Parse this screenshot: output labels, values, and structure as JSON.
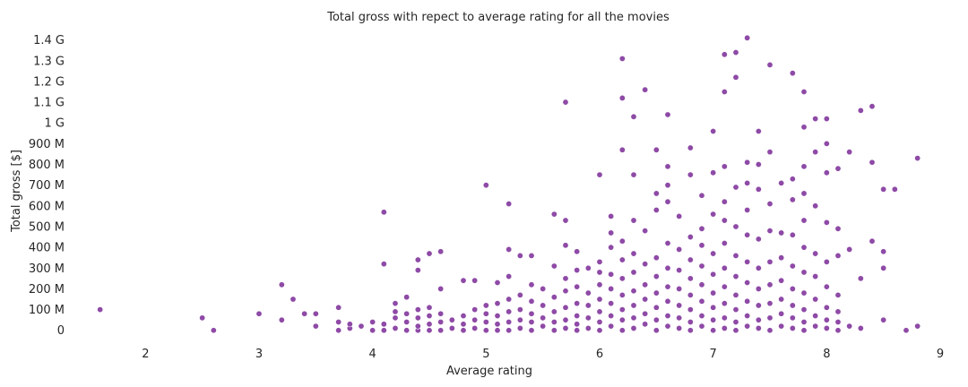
{
  "chart_data": {
    "type": "scatter",
    "title": "Total gross with repect to average rating for all the movies",
    "xlabel": "Average rating",
    "ylabel": "Total gross [$]",
    "xlim": [
      1.35,
      9.0
    ],
    "ylim": [
      -0.04,
      1.42
    ],
    "x_ticks": [
      2,
      3,
      4,
      5,
      6,
      7,
      8,
      9
    ],
    "x_tick_labels": [
      "2",
      "3",
      "4",
      "5",
      "6",
      "7",
      "8",
      "9"
    ],
    "y_ticks": [
      0,
      0.1,
      0.2,
      0.3,
      0.4,
      0.5,
      0.6,
      0.7,
      0.8,
      0.9,
      1.0,
      1.1,
      1.2,
      1.3,
      1.4
    ],
    "y_tick_labels": [
      "0",
      "100 M",
      "200 M",
      "300 M",
      "400 M",
      "500 M",
      "600 M",
      "700 M",
      "800 M",
      "900 M",
      "1 G",
      "1.1 G",
      "1.2 G",
      "1.3 G",
      "1.4 G"
    ],
    "y_unit": "G$",
    "grid": false,
    "marker_color": "#8e4aa6",
    "points": [
      [
        1.6,
        0.1
      ],
      [
        2.5,
        0.06
      ],
      [
        2.6,
        0.0
      ],
      [
        3.0,
        0.08
      ],
      [
        3.2,
        0.05
      ],
      [
        3.2,
        0.22
      ],
      [
        3.3,
        0.15
      ],
      [
        3.4,
        0.08
      ],
      [
        3.5,
        0.02
      ],
      [
        3.5,
        0.08
      ],
      [
        3.7,
        0.0
      ],
      [
        3.7,
        0.04
      ],
      [
        3.7,
        0.11
      ],
      [
        3.8,
        0.01
      ],
      [
        3.8,
        0.03
      ],
      [
        3.9,
        0.02
      ],
      [
        4.0,
        0.0
      ],
      [
        4.0,
        0.04
      ],
      [
        4.1,
        0.0
      ],
      [
        4.1,
        0.03
      ],
      [
        4.1,
        0.32
      ],
      [
        4.1,
        0.57
      ],
      [
        4.2,
        0.01
      ],
      [
        4.2,
        0.06
      ],
      [
        4.2,
        0.09
      ],
      [
        4.2,
        0.13
      ],
      [
        4.3,
        0.0
      ],
      [
        4.3,
        0.04
      ],
      [
        4.3,
        0.08
      ],
      [
        4.3,
        0.16
      ],
      [
        4.4,
        0.0
      ],
      [
        4.4,
        0.02
      ],
      [
        4.4,
        0.06
      ],
      [
        4.4,
        0.1
      ],
      [
        4.4,
        0.29
      ],
      [
        4.4,
        0.34
      ],
      [
        4.5,
        0.0
      ],
      [
        4.5,
        0.03
      ],
      [
        4.5,
        0.07
      ],
      [
        4.5,
        0.11
      ],
      [
        4.5,
        0.37
      ],
      [
        4.6,
        0.0
      ],
      [
        4.6,
        0.04
      ],
      [
        4.6,
        0.08
      ],
      [
        4.6,
        0.2
      ],
      [
        4.6,
        0.38
      ],
      [
        4.7,
        0.01
      ],
      [
        4.7,
        0.05
      ],
      [
        4.8,
        0.0
      ],
      [
        4.8,
        0.03
      ],
      [
        4.8,
        0.07
      ],
      [
        4.8,
        0.24
      ],
      [
        4.9,
        0.01
      ],
      [
        4.9,
        0.05
      ],
      [
        4.9,
        0.1
      ],
      [
        4.9,
        0.24
      ],
      [
        5.0,
        0.0
      ],
      [
        5.0,
        0.04
      ],
      [
        5.0,
        0.08
      ],
      [
        5.0,
        0.12
      ],
      [
        5.0,
        0.7
      ],
      [
        5.1,
        0.0
      ],
      [
        5.1,
        0.03
      ],
      [
        5.1,
        0.07
      ],
      [
        5.1,
        0.13
      ],
      [
        5.1,
        0.23
      ],
      [
        5.2,
        0.0
      ],
      [
        5.2,
        0.04
      ],
      [
        5.2,
        0.09
      ],
      [
        5.2,
        0.15
      ],
      [
        5.2,
        0.26
      ],
      [
        5.2,
        0.39
      ],
      [
        5.2,
        0.61
      ],
      [
        5.3,
        0.01
      ],
      [
        5.3,
        0.05
      ],
      [
        5.3,
        0.1
      ],
      [
        5.3,
        0.17
      ],
      [
        5.3,
        0.36
      ],
      [
        5.4,
        0.0
      ],
      [
        5.4,
        0.04
      ],
      [
        5.4,
        0.08
      ],
      [
        5.4,
        0.14
      ],
      [
        5.4,
        0.22
      ],
      [
        5.4,
        0.36
      ],
      [
        5.5,
        0.02
      ],
      [
        5.5,
        0.06
      ],
      [
        5.5,
        0.12
      ],
      [
        5.5,
        0.2
      ],
      [
        5.6,
        0.0
      ],
      [
        5.6,
        0.04
      ],
      [
        5.6,
        0.09
      ],
      [
        5.6,
        0.16
      ],
      [
        5.6,
        0.31
      ],
      [
        5.6,
        0.56
      ],
      [
        5.7,
        0.01
      ],
      [
        5.7,
        0.05
      ],
      [
        5.7,
        0.11
      ],
      [
        5.7,
        0.19
      ],
      [
        5.7,
        0.25
      ],
      [
        5.7,
        0.41
      ],
      [
        5.7,
        0.53
      ],
      [
        5.7,
        1.1
      ],
      [
        5.8,
        0.0
      ],
      [
        5.8,
        0.03
      ],
      [
        5.8,
        0.07
      ],
      [
        5.8,
        0.13
      ],
      [
        5.8,
        0.21
      ],
      [
        5.8,
        0.29
      ],
      [
        5.8,
        0.38
      ],
      [
        5.9,
        0.01
      ],
      [
        5.9,
        0.06
      ],
      [
        5.9,
        0.12
      ],
      [
        5.9,
        0.18
      ],
      [
        5.9,
        0.3
      ],
      [
        6.0,
        0.0
      ],
      [
        6.0,
        0.04
      ],
      [
        6.0,
        0.09
      ],
      [
        6.0,
        0.15
      ],
      [
        6.0,
        0.22
      ],
      [
        6.0,
        0.28
      ],
      [
        6.0,
        0.33
      ],
      [
        6.0,
        0.75
      ],
      [
        6.1,
        0.02
      ],
      [
        6.1,
        0.07
      ],
      [
        6.1,
        0.13
      ],
      [
        6.1,
        0.2
      ],
      [
        6.1,
        0.27
      ],
      [
        6.1,
        0.4
      ],
      [
        6.1,
        0.47
      ],
      [
        6.1,
        0.55
      ],
      [
        6.2,
        0.0
      ],
      [
        6.2,
        0.05
      ],
      [
        6.2,
        0.1
      ],
      [
        6.2,
        0.17
      ],
      [
        6.2,
        0.25
      ],
      [
        6.2,
        0.34
      ],
      [
        6.2,
        0.43
      ],
      [
        6.2,
        0.87
      ],
      [
        6.2,
        1.12
      ],
      [
        6.2,
        1.31
      ],
      [
        6.3,
        0.01
      ],
      [
        6.3,
        0.06
      ],
      [
        6.3,
        0.12
      ],
      [
        6.3,
        0.19
      ],
      [
        6.3,
        0.28
      ],
      [
        6.3,
        0.37
      ],
      [
        6.3,
        0.53
      ],
      [
        6.3,
        0.75
      ],
      [
        6.3,
        1.03
      ],
      [
        6.4,
        0.03
      ],
      [
        6.4,
        0.08
      ],
      [
        6.4,
        0.15
      ],
      [
        6.4,
        0.22
      ],
      [
        6.4,
        0.32
      ],
      [
        6.4,
        0.48
      ],
      [
        6.4,
        1.16
      ],
      [
        6.5,
        0.0
      ],
      [
        6.5,
        0.05
      ],
      [
        6.5,
        0.11
      ],
      [
        6.5,
        0.18
      ],
      [
        6.5,
        0.26
      ],
      [
        6.5,
        0.35
      ],
      [
        6.5,
        0.58
      ],
      [
        6.5,
        0.66
      ],
      [
        6.5,
        0.87
      ],
      [
        6.6,
        0.02
      ],
      [
        6.6,
        0.07
      ],
      [
        6.6,
        0.14
      ],
      [
        6.6,
        0.21
      ],
      [
        6.6,
        0.3
      ],
      [
        6.6,
        0.42
      ],
      [
        6.6,
        0.62
      ],
      [
        6.6,
        0.7
      ],
      [
        6.6,
        0.79
      ],
      [
        6.6,
        1.04
      ],
      [
        6.7,
        0.01
      ],
      [
        6.7,
        0.06
      ],
      [
        6.7,
        0.12
      ],
      [
        6.7,
        0.2
      ],
      [
        6.7,
        0.29
      ],
      [
        6.7,
        0.39
      ],
      [
        6.7,
        0.55
      ],
      [
        6.8,
        0.0
      ],
      [
        6.8,
        0.04
      ],
      [
        6.8,
        0.1
      ],
      [
        6.8,
        0.17
      ],
      [
        6.8,
        0.25
      ],
      [
        6.8,
        0.34
      ],
      [
        6.8,
        0.45
      ],
      [
        6.8,
        0.75
      ],
      [
        6.8,
        0.88
      ],
      [
        6.9,
        0.02
      ],
      [
        6.9,
        0.07
      ],
      [
        6.9,
        0.14
      ],
      [
        6.9,
        0.22
      ],
      [
        6.9,
        0.31
      ],
      [
        6.9,
        0.41
      ],
      [
        6.9,
        0.49
      ],
      [
        6.9,
        0.65
      ],
      [
        7.0,
        0.0
      ],
      [
        7.0,
        0.05
      ],
      [
        7.0,
        0.11
      ],
      [
        7.0,
        0.18
      ],
      [
        7.0,
        0.27
      ],
      [
        7.0,
        0.37
      ],
      [
        7.0,
        0.56
      ],
      [
        7.0,
        0.76
      ],
      [
        7.0,
        0.96
      ],
      [
        7.1,
        0.01
      ],
      [
        7.1,
        0.06
      ],
      [
        7.1,
        0.13
      ],
      [
        7.1,
        0.21
      ],
      [
        7.1,
        0.3
      ],
      [
        7.1,
        0.42
      ],
      [
        7.1,
        0.53
      ],
      [
        7.1,
        0.62
      ],
      [
        7.1,
        0.79
      ],
      [
        7.1,
        1.15
      ],
      [
        7.1,
        1.33
      ],
      [
        7.2,
        0.0
      ],
      [
        7.2,
        0.04
      ],
      [
        7.2,
        0.1
      ],
      [
        7.2,
        0.17
      ],
      [
        7.2,
        0.26
      ],
      [
        7.2,
        0.36
      ],
      [
        7.2,
        0.5
      ],
      [
        7.2,
        0.69
      ],
      [
        7.2,
        1.22
      ],
      [
        7.2,
        1.34
      ],
      [
        7.3,
        0.02
      ],
      [
        7.3,
        0.07
      ],
      [
        7.3,
        0.14
      ],
      [
        7.3,
        0.23
      ],
      [
        7.3,
        0.33
      ],
      [
        7.3,
        0.46
      ],
      [
        7.3,
        0.58
      ],
      [
        7.3,
        0.71
      ],
      [
        7.3,
        0.81
      ],
      [
        7.3,
        1.41
      ],
      [
        7.4,
        0.01
      ],
      [
        7.4,
        0.05
      ],
      [
        7.4,
        0.12
      ],
      [
        7.4,
        0.2
      ],
      [
        7.4,
        0.3
      ],
      [
        7.4,
        0.44
      ],
      [
        7.4,
        0.68
      ],
      [
        7.4,
        0.8
      ],
      [
        7.4,
        0.96
      ],
      [
        7.5,
        0.0
      ],
      [
        7.5,
        0.06
      ],
      [
        7.5,
        0.13
      ],
      [
        7.5,
        0.22
      ],
      [
        7.5,
        0.33
      ],
      [
        7.5,
        0.48
      ],
      [
        7.5,
        0.61
      ],
      [
        7.5,
        0.86
      ],
      [
        7.5,
        1.28
      ],
      [
        7.6,
        0.02
      ],
      [
        7.6,
        0.08
      ],
      [
        7.6,
        0.15
      ],
      [
        7.6,
        0.24
      ],
      [
        7.6,
        0.35
      ],
      [
        7.6,
        0.47
      ],
      [
        7.6,
        0.71
      ],
      [
        7.7,
        0.01
      ],
      [
        7.7,
        0.06
      ],
      [
        7.7,
        0.12
      ],
      [
        7.7,
        0.2
      ],
      [
        7.7,
        0.31
      ],
      [
        7.7,
        0.46
      ],
      [
        7.7,
        0.63
      ],
      [
        7.7,
        0.73
      ],
      [
        7.7,
        1.24
      ],
      [
        7.8,
        0.0
      ],
      [
        7.8,
        0.04
      ],
      [
        7.8,
        0.1
      ],
      [
        7.8,
        0.18
      ],
      [
        7.8,
        0.28
      ],
      [
        7.8,
        0.4
      ],
      [
        7.8,
        0.53
      ],
      [
        7.8,
        0.66
      ],
      [
        7.8,
        0.79
      ],
      [
        7.8,
        0.98
      ],
      [
        7.8,
        1.15
      ],
      [
        7.9,
        0.02
      ],
      [
        7.9,
        0.07
      ],
      [
        7.9,
        0.15
      ],
      [
        7.9,
        0.26
      ],
      [
        7.9,
        0.37
      ],
      [
        7.9,
        0.6
      ],
      [
        7.9,
        0.86
      ],
      [
        7.9,
        1.02
      ],
      [
        8.0,
        0.01
      ],
      [
        8.0,
        0.05
      ],
      [
        8.0,
        0.11
      ],
      [
        8.0,
        0.21
      ],
      [
        8.0,
        0.33
      ],
      [
        8.0,
        0.52
      ],
      [
        8.0,
        0.76
      ],
      [
        8.0,
        0.9
      ],
      [
        8.0,
        1.02
      ],
      [
        8.1,
        0.0
      ],
      [
        8.1,
        0.04
      ],
      [
        8.1,
        0.09
      ],
      [
        8.1,
        0.17
      ],
      [
        8.1,
        0.36
      ],
      [
        8.1,
        0.49
      ],
      [
        8.1,
        0.78
      ],
      [
        8.2,
        0.02
      ],
      [
        8.2,
        0.39
      ],
      [
        8.2,
        0.86
      ],
      [
        8.3,
        0.01
      ],
      [
        8.3,
        0.25
      ],
      [
        8.3,
        1.06
      ],
      [
        8.4,
        0.43
      ],
      [
        8.4,
        0.81
      ],
      [
        8.4,
        1.08
      ],
      [
        8.5,
        0.05
      ],
      [
        8.5,
        0.3
      ],
      [
        8.5,
        0.38
      ],
      [
        8.5,
        0.68
      ],
      [
        8.6,
        0.68
      ],
      [
        8.7,
        0.0
      ],
      [
        8.8,
        0.02
      ],
      [
        8.8,
        0.83
      ]
    ]
  }
}
